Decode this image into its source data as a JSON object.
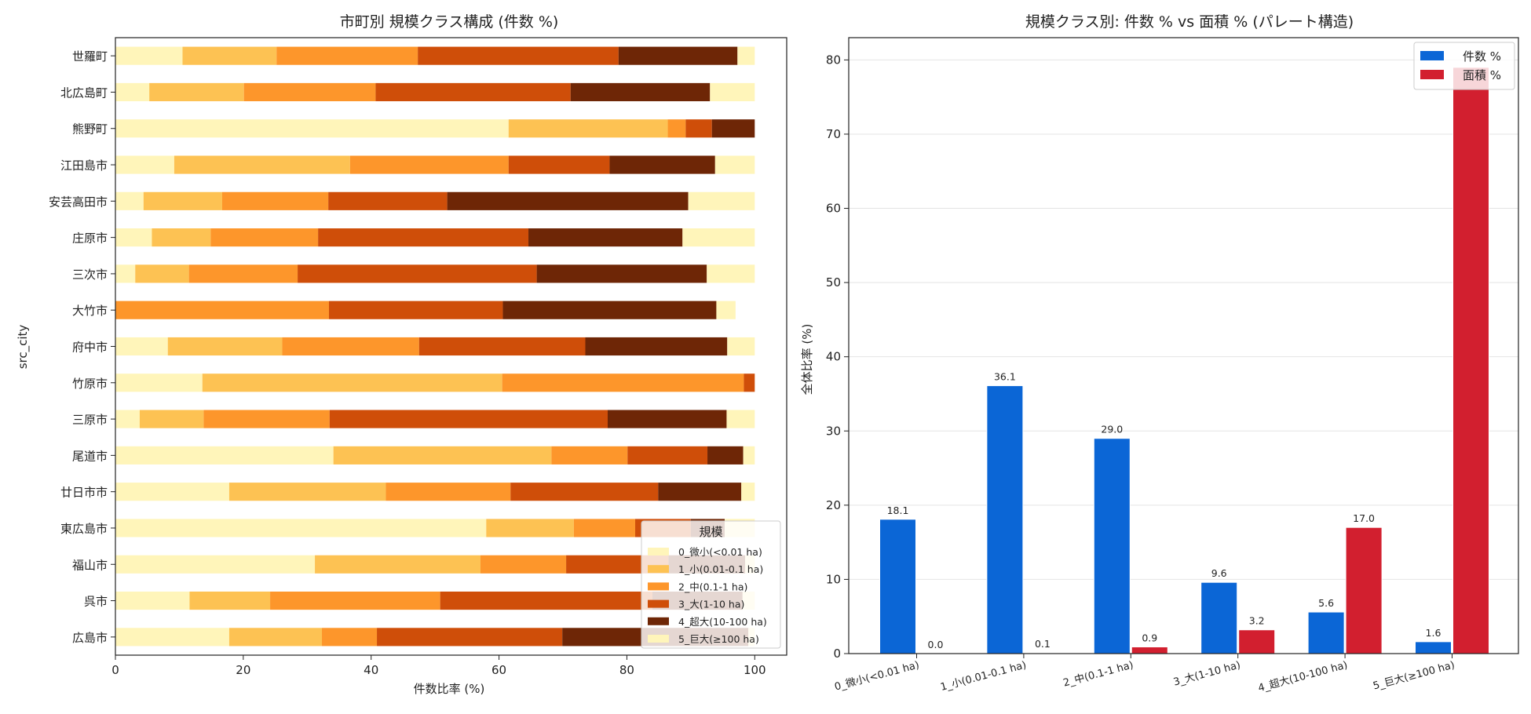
{
  "chart_data": [
    {
      "type": "bar",
      "orientation": "horizontal",
      "stacked": true,
      "title": "市町別 規模クラス構成 (件数 %)",
      "xlabel": "件数比率 (%)",
      "ylabel": "src_city",
      "xlim": [
        0,
        105
      ],
      "xticks": [
        "0",
        "20",
        "40",
        "60",
        "80",
        "100"
      ],
      "grid": false,
      "legend": {
        "title": "規模",
        "position": "lower-right"
      },
      "categories": [
        "世羅町",
        "北広島町",
        "熊野町",
        "江田島市",
        "安芸高田市",
        "庄原市",
        "三次市",
        "大竹市",
        "府中市",
        "竹原市",
        "三原市",
        "尾道市",
        "廿日市市",
        "東広島市",
        "福山市",
        "呉市",
        "広島市"
      ],
      "series": [
        {
          "name": "0_微小(<0.01 ha)",
          "color": "#fff5ba",
          "values": [
            10.5,
            5.3,
            61.5,
            9.2,
            4.4,
            5.7,
            3.1,
            0.0,
            8.2,
            13.6,
            3.8,
            34.1,
            17.8,
            58.0,
            31.2,
            11.6,
            17.8
          ]
        },
        {
          "name": "1_小(0.01-0.1 ha)",
          "color": "#fdc253",
          "values": [
            14.7,
            14.8,
            24.9,
            27.5,
            12.3,
            9.2,
            8.4,
            0.0,
            17.9,
            46.9,
            10.0,
            34.1,
            24.5,
            13.7,
            25.9,
            12.6,
            14.5
          ]
        },
        {
          "name": "2_中(0.1-1 ha)",
          "color": "#fd962b",
          "values": [
            22.1,
            20.6,
            2.8,
            24.8,
            16.6,
            16.8,
            17.0,
            33.4,
            21.4,
            37.8,
            19.7,
            11.9,
            19.5,
            9.6,
            13.4,
            26.6,
            8.6
          ]
        },
        {
          "name": "3_大(1-10 ha)",
          "color": "#cf4e09",
          "values": [
            31.4,
            30.5,
            4.1,
            15.8,
            18.6,
            32.9,
            37.4,
            27.2,
            26.0,
            1.7,
            43.5,
            12.5,
            23.1,
            8.7,
            16.0,
            33.2,
            29.0
          ]
        },
        {
          "name": "4_超大(10-100 ha)",
          "color": "#6e2606",
          "values": [
            18.6,
            21.8,
            6.7,
            16.5,
            37.7,
            24.1,
            26.6,
            33.4,
            22.2,
            0.0,
            18.6,
            5.6,
            13.0,
            5.3,
            12.0,
            14.1,
            29.1
          ]
        },
        {
          "name": "5_巨大(≥100 ha)",
          "color": "#fff5ba",
          "values": [
            2.7,
            7.0,
            0.0,
            6.2,
            10.4,
            11.3,
            7.5,
            3.0,
            4.3,
            0.0,
            4.4,
            1.8,
            2.1,
            4.7,
            1.5,
            1.9,
            1.0
          ]
        }
      ]
    },
    {
      "type": "bar",
      "title": "規模クラス別: 件数 % vs 面積 % (パレート構造)",
      "xlabel": "",
      "ylabel": "全体比率 (%)",
      "ylim": [
        0,
        83
      ],
      "yticks": [
        "0",
        "10",
        "20",
        "30",
        "40",
        "50",
        "60",
        "70",
        "80"
      ],
      "grid": true,
      "legend": {
        "position": "top-right"
      },
      "categories": [
        "0_微小(<0.01 ha)",
        "1_小(0.01-0.1 ha)",
        "2_中(0.1-1 ha)",
        "3_大(1-10 ha)",
        "4_超大(10-100 ha)",
        "5_巨大(≥100 ha)"
      ],
      "series": [
        {
          "name": "件数 %",
          "color": "#0b66d6",
          "label_color": "#333333",
          "values": [
            18.1,
            36.1,
            29.0,
            9.6,
            5.6,
            1.6
          ],
          "labels": [
            "18.1",
            "36.1",
            "29.0",
            "9.6",
            "5.6",
            "1.6"
          ]
        },
        {
          "name": "面積 %",
          "color": "#d21f2f",
          "label_color": "#a22a2a",
          "values": [
            0.0,
            0.1,
            0.9,
            3.2,
            17.0,
            79.0
          ],
          "labels": [
            "0.0",
            "0.1",
            "0.9",
            "3.2",
            "17.0",
            ""
          ]
        }
      ]
    }
  ]
}
